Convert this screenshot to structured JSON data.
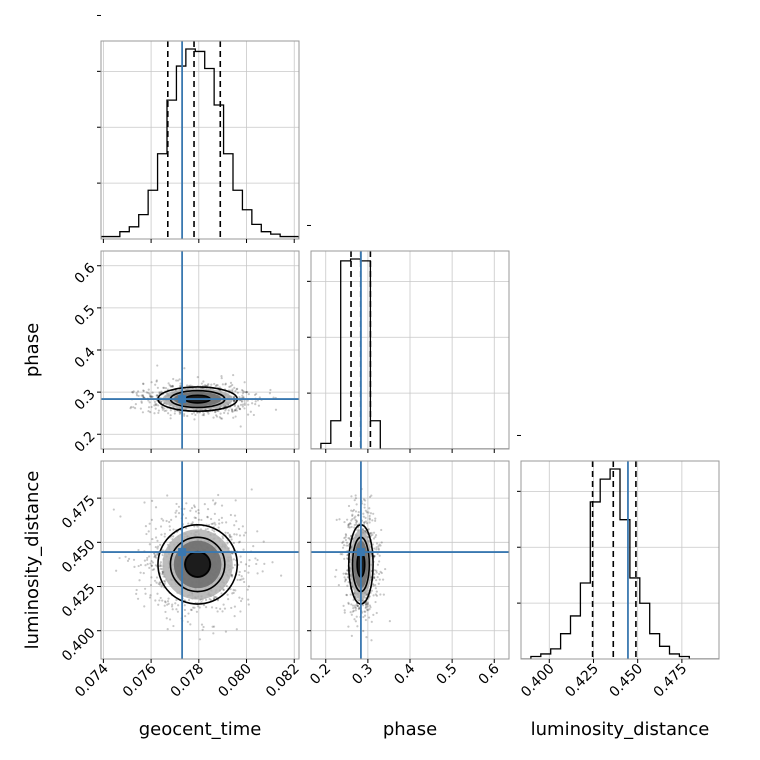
{
  "chart_data": {
    "type": "corner",
    "parameters": [
      "geocent_time",
      "phase",
      "luminosity_distance"
    ],
    "truths": {
      "geocent_time": 0.0773,
      "phase": 0.2835,
      "luminosity_distance": 0.4445
    },
    "ranges": {
      "geocent_time": [
        0.0739,
        0.0822
      ],
      "phase": [
        0.165,
        0.635
      ],
      "luminosity_distance": [
        0.384,
        0.496
      ]
    },
    "ticks": {
      "geocent_time": {
        "values": [
          0.074,
          0.076,
          0.078,
          0.08,
          0.082
        ],
        "labels": [
          "0.074",
          "0.076",
          "0.078",
          "0.080",
          "0.082"
        ]
      },
      "phase": {
        "values": [
          0.2,
          0.3,
          0.4,
          0.5,
          0.6
        ],
        "labels": [
          "0.2",
          "0.3",
          "0.4",
          "0.5",
          "0.6"
        ]
      },
      "luminosity_distance": {
        "values": [
          0.4,
          0.425,
          0.45,
          0.475
        ],
        "labels": [
          "0.400",
          "0.425",
          "0.450",
          "0.475"
        ]
      }
    },
    "quantiles": {
      "geocent_time": [
        0.0767,
        0.0778,
        0.0789
      ],
      "phase": [
        0.26,
        0.283,
        0.306
      ],
      "luminosity_distance": [
        0.4245,
        0.4362,
        0.449
      ]
    },
    "histograms": {
      "geocent_time": [
        1,
        1,
        3,
        5,
        10,
        20,
        35,
        57,
        71,
        78,
        77,
        70,
        55,
        35,
        20,
        12,
        6,
        3,
        2,
        1,
        1
      ],
      "phase": [
        0,
        3,
        15,
        100,
        101,
        100,
        15,
        0,
        0,
        0,
        0,
        0,
        0,
        0,
        0,
        0,
        0,
        0,
        0,
        0
      ],
      "luminosity_distance": [
        0,
        1,
        2,
        4,
        10,
        17,
        30,
        62,
        71,
        75,
        55,
        32,
        22,
        10,
        5,
        2,
        1,
        0,
        0,
        0
      ]
    },
    "centers": {
      "geocent_time": 0.07795,
      "phase": 0.2835,
      "luminosity_distance": 0.4375
    },
    "sigmas": {
      "geocent_time": 0.00095,
      "phase": 0.0165,
      "luminosity_distance": 0.0128
    },
    "grid": true
  }
}
